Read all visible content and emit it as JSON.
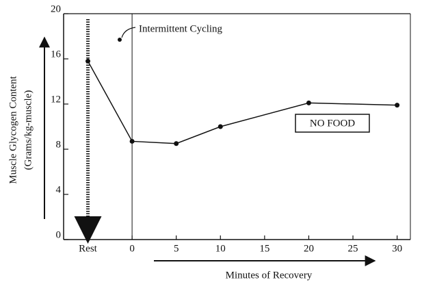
{
  "chart_data": {
    "type": "line",
    "y_label": [
      "Muscle Glycogen Content",
      "(Grams/kg-muscle)"
    ],
    "x_label": "Minutes of Recovery",
    "annotations": [
      "Intermittent Cycling",
      "NO FOOD"
    ],
    "x": [
      -5,
      0,
      5,
      10,
      20,
      30
    ],
    "series": [
      {
        "color": "#111111",
        "values": [
          15.8,
          8.7,
          8.5,
          10.0,
          12.1,
          11.9
        ]
      }
    ],
    "xlim": [
      -7.75,
      31.5
    ],
    "ylim": [
      0,
      20
    ],
    "xticks": [
      {
        "value": -5,
        "label": "Rest"
      },
      0,
      5,
      10,
      15,
      20,
      25,
      30
    ],
    "yticks": [
      0,
      4,
      8,
      12,
      16,
      20
    ]
  }
}
